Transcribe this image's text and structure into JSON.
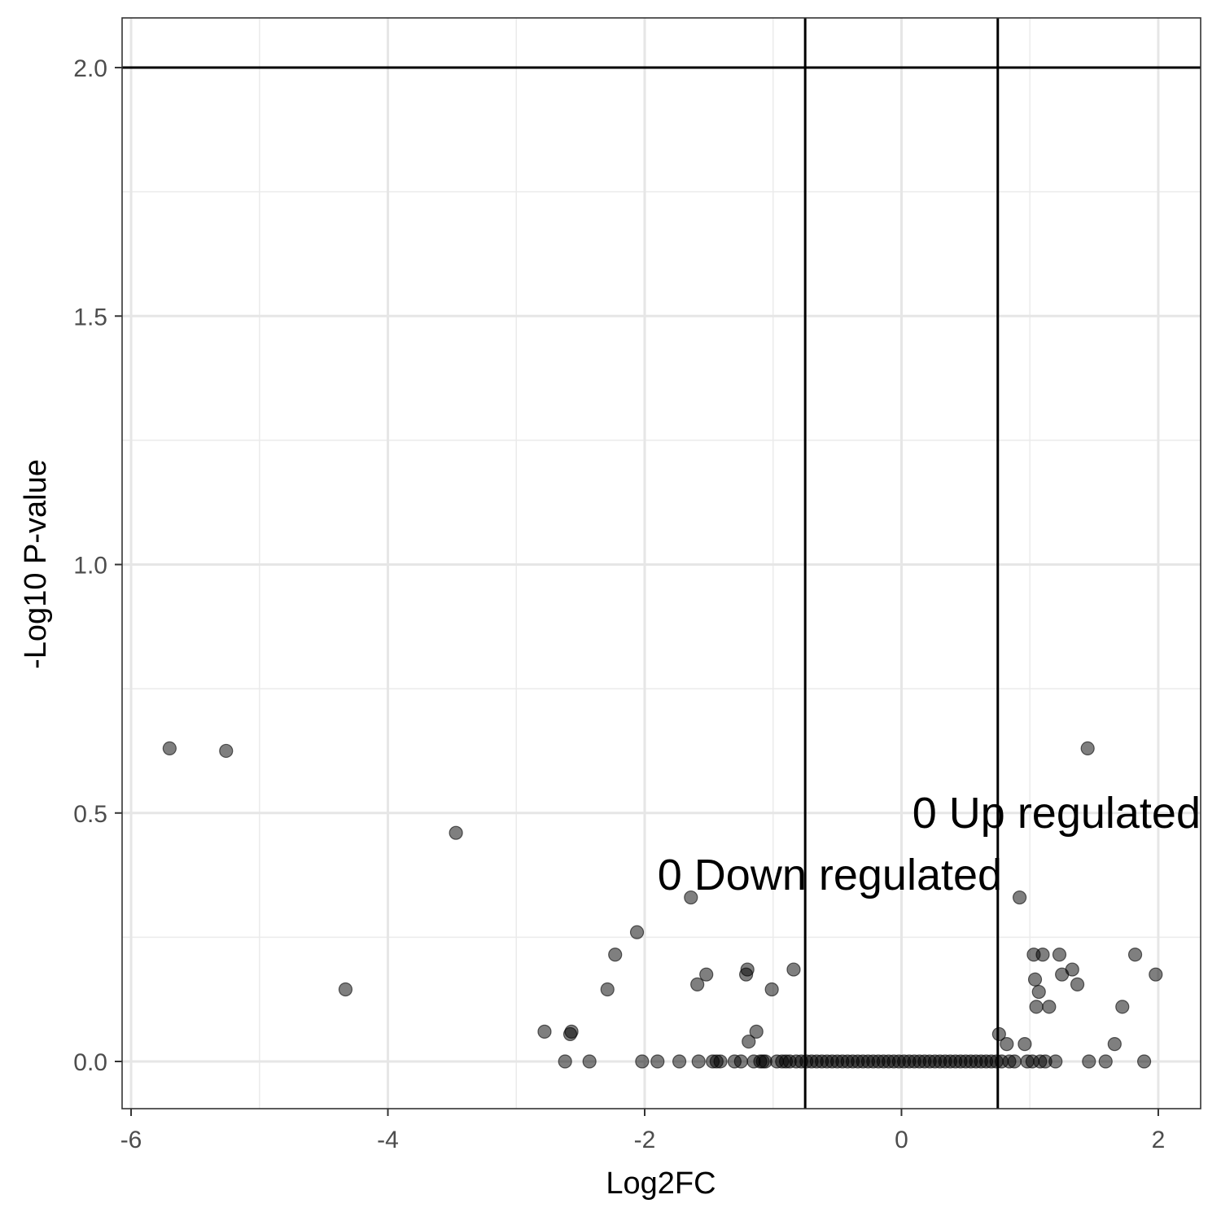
{
  "chart_data": {
    "type": "scatter",
    "title": "",
    "xlabel": "Log2FC",
    "ylabel": "-Log10 P-value",
    "xlim": [
      -6.07,
      2.33
    ],
    "ylim": [
      -0.095,
      2.1
    ],
    "xticks": [
      -6,
      -4,
      -2,
      0,
      2
    ],
    "xtick_labels": [
      "-6",
      "-4",
      "-2",
      "0",
      "2"
    ],
    "yticks": [
      0,
      0.5,
      1,
      1.5,
      2
    ],
    "ytick_labels": [
      "0.0",
      "0.5",
      "1.0",
      "1.5",
      "2.0"
    ],
    "grid": true,
    "legend": "none",
    "point_color": "#000000",
    "point_alpha": 0.5,
    "hlines": [
      2.0
    ],
    "vlines": [
      -0.75,
      0.75
    ],
    "annotations": [
      {
        "text": "0 Up regulated",
        "x": 2.33,
        "y": 0.5,
        "anchor": "end"
      },
      {
        "text": "0 Down regulated",
        "x": -1.9,
        "y": 0.375,
        "anchor": "start"
      }
    ],
    "points": [
      {
        "x": -5.7,
        "y": 0.63
      },
      {
        "x": -5.26,
        "y": 0.625
      },
      {
        "x": -4.33,
        "y": 0.145
      },
      {
        "x": -3.47,
        "y": 0.46
      },
      {
        "x": -2.78,
        "y": 0.06
      },
      {
        "x": -2.62,
        "y": 0.0
      },
      {
        "x": -2.58,
        "y": 0.055
      },
      {
        "x": -2.57,
        "y": 0.06
      },
      {
        "x": -2.43,
        "y": 0.0
      },
      {
        "x": -2.29,
        "y": 0.145
      },
      {
        "x": -2.23,
        "y": 0.215
      },
      {
        "x": -2.06,
        "y": 0.26
      },
      {
        "x": -2.02,
        "y": 0.0
      },
      {
        "x": -1.9,
        "y": 0.0
      },
      {
        "x": -1.73,
        "y": 0.0
      },
      {
        "x": -1.64,
        "y": 0.33
      },
      {
        "x": -1.59,
        "y": 0.155
      },
      {
        "x": -1.58,
        "y": 0.0
      },
      {
        "x": -1.52,
        "y": 0.175
      },
      {
        "x": -1.47,
        "y": 0.0
      },
      {
        "x": -1.44,
        "y": 0.0
      },
      {
        "x": -1.41,
        "y": 0.0
      },
      {
        "x": -1.3,
        "y": 0.0
      },
      {
        "x": -1.25,
        "y": 0.0
      },
      {
        "x": -1.21,
        "y": 0.175
      },
      {
        "x": -1.2,
        "y": 0.185
      },
      {
        "x": -1.19,
        "y": 0.04
      },
      {
        "x": -1.15,
        "y": 0.0
      },
      {
        "x": -1.13,
        "y": 0.06
      },
      {
        "x": -1.1,
        "y": 0.0
      },
      {
        "x": -1.08,
        "y": 0.0
      },
      {
        "x": -1.06,
        "y": 0.0
      },
      {
        "x": -1.01,
        "y": 0.145
      },
      {
        "x": -0.97,
        "y": 0.0
      },
      {
        "x": -0.93,
        "y": 0.0
      },
      {
        "x": -0.9,
        "y": 0.0
      },
      {
        "x": -0.87,
        "y": 0.0
      },
      {
        "x": -0.84,
        "y": 0.185
      },
      {
        "x": -0.82,
        "y": 0.0
      },
      {
        "x": -0.78,
        "y": 0.0
      },
      {
        "x": -0.74,
        "y": 0.0
      },
      {
        "x": -0.7,
        "y": 0.0
      },
      {
        "x": -0.66,
        "y": 0.0
      },
      {
        "x": -0.62,
        "y": 0.0
      },
      {
        "x": -0.58,
        "y": 0.0
      },
      {
        "x": -0.54,
        "y": 0.0
      },
      {
        "x": -0.5,
        "y": 0.0
      },
      {
        "x": -0.46,
        "y": 0.0
      },
      {
        "x": -0.42,
        "y": 0.0
      },
      {
        "x": -0.38,
        "y": 0.0
      },
      {
        "x": -0.34,
        "y": 0.0
      },
      {
        "x": -0.3,
        "y": 0.0
      },
      {
        "x": -0.26,
        "y": 0.0
      },
      {
        "x": -0.22,
        "y": 0.0
      },
      {
        "x": -0.18,
        "y": 0.0
      },
      {
        "x": -0.14,
        "y": 0.0
      },
      {
        "x": -0.1,
        "y": 0.0
      },
      {
        "x": -0.06,
        "y": 0.0
      },
      {
        "x": -0.02,
        "y": 0.0
      },
      {
        "x": 0.02,
        "y": 0.0
      },
      {
        "x": 0.06,
        "y": 0.0
      },
      {
        "x": 0.1,
        "y": 0.0
      },
      {
        "x": 0.14,
        "y": 0.0
      },
      {
        "x": 0.18,
        "y": 0.0
      },
      {
        "x": 0.22,
        "y": 0.0
      },
      {
        "x": 0.26,
        "y": 0.0
      },
      {
        "x": 0.3,
        "y": 0.0
      },
      {
        "x": 0.34,
        "y": 0.0
      },
      {
        "x": 0.38,
        "y": 0.0
      },
      {
        "x": 0.42,
        "y": 0.0
      },
      {
        "x": 0.46,
        "y": 0.0
      },
      {
        "x": 0.5,
        "y": 0.0
      },
      {
        "x": 0.54,
        "y": 0.0
      },
      {
        "x": 0.58,
        "y": 0.0
      },
      {
        "x": 0.62,
        "y": 0.0
      },
      {
        "x": 0.66,
        "y": 0.0
      },
      {
        "x": 0.7,
        "y": 0.0
      },
      {
        "x": 0.74,
        "y": 0.0
      },
      {
        "x": 0.76,
        "y": 0.055
      },
      {
        "x": 0.78,
        "y": 0.0
      },
      {
        "x": 0.82,
        "y": 0.035
      },
      {
        "x": 0.84,
        "y": 0.0
      },
      {
        "x": 0.88,
        "y": 0.0
      },
      {
        "x": 0.92,
        "y": 0.33
      },
      {
        "x": 0.96,
        "y": 0.035
      },
      {
        "x": 0.98,
        "y": 0.0
      },
      {
        "x": 1.02,
        "y": 0.0
      },
      {
        "x": 1.03,
        "y": 0.215
      },
      {
        "x": 1.04,
        "y": 0.165
      },
      {
        "x": 1.05,
        "y": 0.11
      },
      {
        "x": 1.07,
        "y": 0.14
      },
      {
        "x": 1.08,
        "y": 0.0
      },
      {
        "x": 1.1,
        "y": 0.215
      },
      {
        "x": 1.12,
        "y": 0.0
      },
      {
        "x": 1.15,
        "y": 0.11
      },
      {
        "x": 1.2,
        "y": 0.0
      },
      {
        "x": 1.23,
        "y": 0.215
      },
      {
        "x": 1.25,
        "y": 0.175
      },
      {
        "x": 1.33,
        "y": 0.185
      },
      {
        "x": 1.37,
        "y": 0.155
      },
      {
        "x": 1.45,
        "y": 0.63
      },
      {
        "x": 1.46,
        "y": 0.0
      },
      {
        "x": 1.59,
        "y": 0.0
      },
      {
        "x": 1.66,
        "y": 0.035
      },
      {
        "x": 1.72,
        "y": 0.11
      },
      {
        "x": 1.82,
        "y": 0.215
      },
      {
        "x": 1.89,
        "y": 0.0
      },
      {
        "x": 1.98,
        "y": 0.175
      }
    ]
  }
}
